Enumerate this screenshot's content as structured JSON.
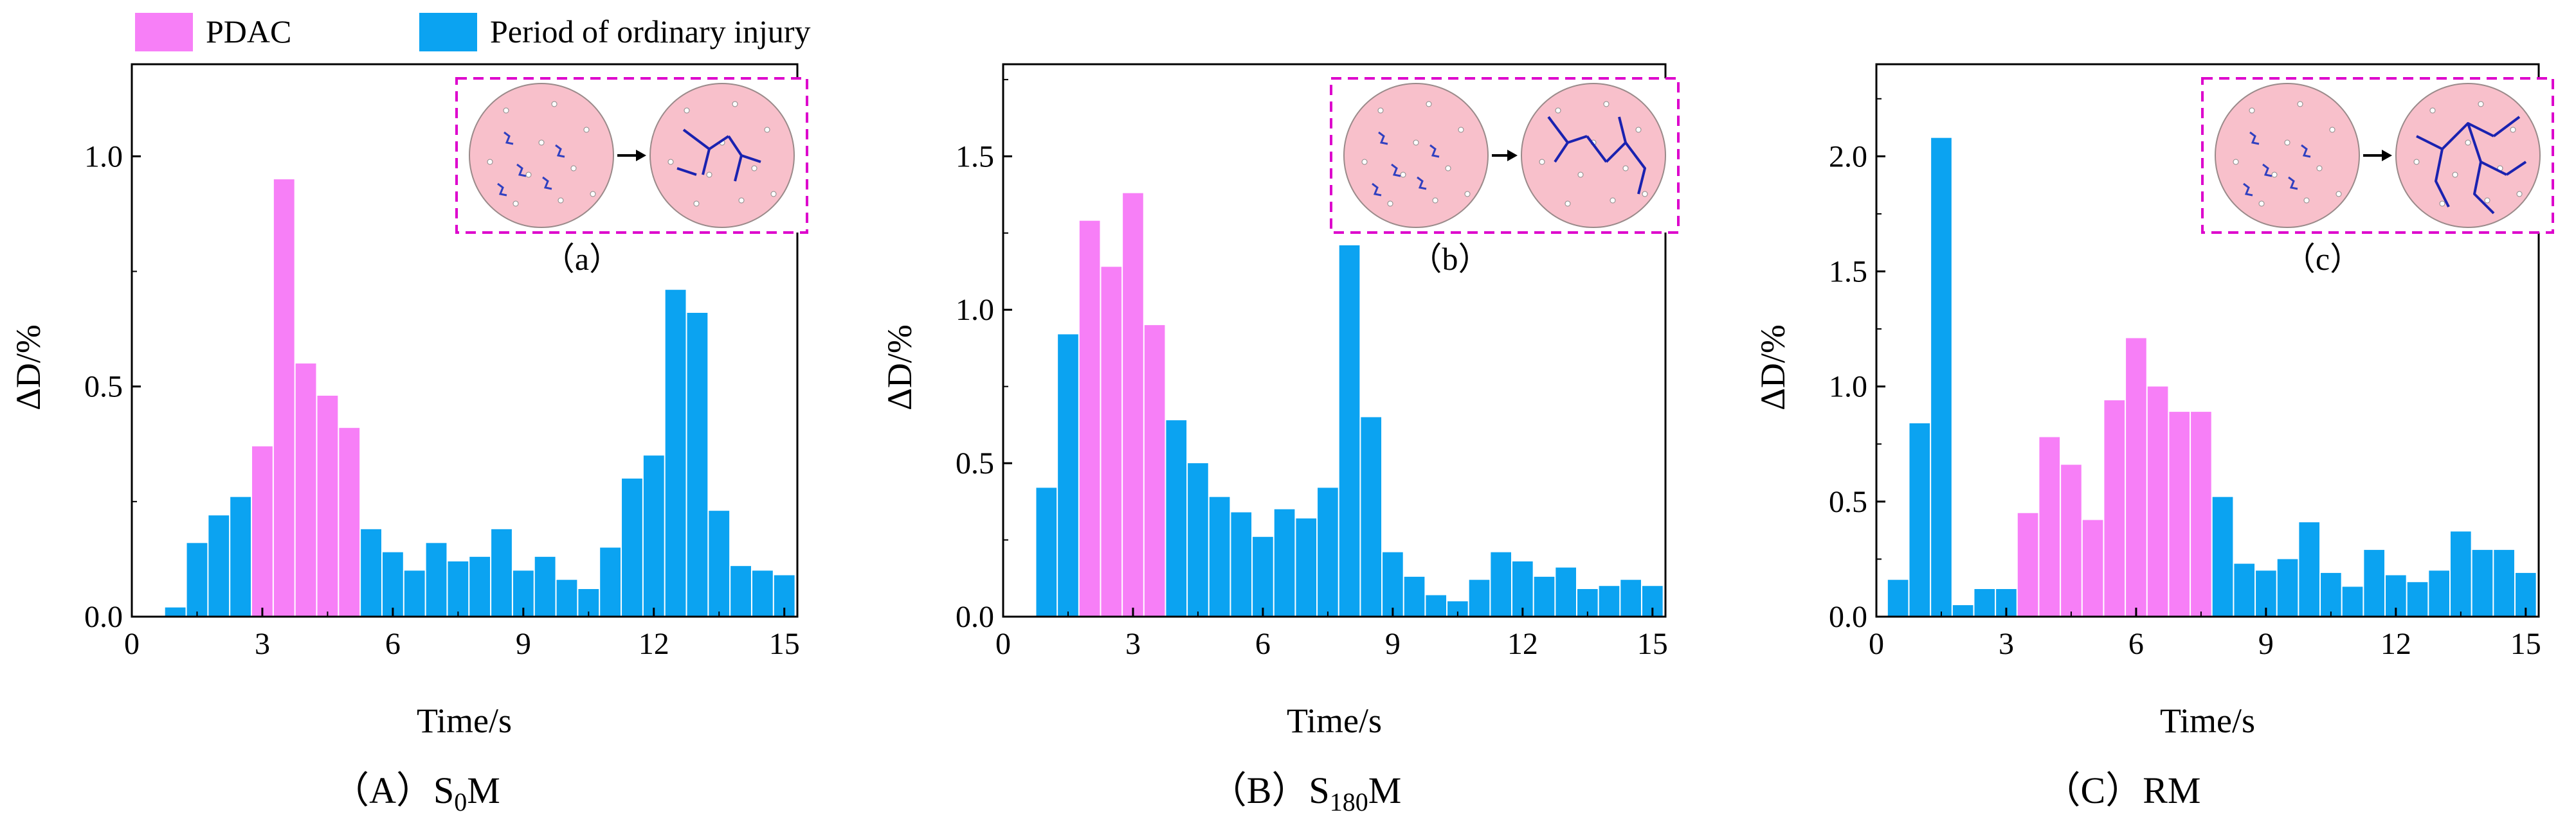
{
  "legend": [
    {
      "label": "PDAC",
      "color": "#f77ff7"
    },
    {
      "label": "Period of ordinary injury",
      "color": "#0ba3f1"
    }
  ],
  "colors": {
    "pdac": "#f77ff7",
    "ordinary": "#0ba3f1",
    "inset_border": "#dd00cc",
    "specimen": "#f8c0cb"
  },
  "chart_data": [
    {
      "type": "bar",
      "caption": {
        "prefix": "（A）S",
        "sub": "0",
        "suffix": "M"
      },
      "inset_caption": "（a）",
      "xlabel": "Time/s",
      "ylabel": "ΔD/%",
      "xlim": [
        0,
        15.3
      ],
      "ylim": [
        0,
        1.2
      ],
      "xticks": [
        "0",
        "3",
        "6",
        "9",
        "12",
        "15"
      ],
      "yticks": [
        "0.0",
        "0.5",
        "1.0"
      ],
      "bar_width": 0.5,
      "x": [
        1.0,
        1.5,
        2.0,
        2.5,
        3.0,
        3.5,
        4.0,
        4.5,
        5.0,
        5.5,
        6.0,
        6.5,
        7.0,
        7.5,
        8.0,
        8.5,
        9.0,
        9.5,
        10.0,
        10.5,
        11.0,
        11.5,
        12.0,
        12.5,
        13.0,
        13.5,
        14.0,
        14.5,
        15.0
      ],
      "values": [
        0.02,
        0.16,
        0.22,
        0.26,
        0.37,
        0.95,
        0.55,
        0.48,
        0.41,
        0.19,
        0.14,
        0.1,
        0.16,
        0.12,
        0.13,
        0.19,
        0.1,
        0.13,
        0.08,
        0.06,
        0.15,
        0.3,
        0.35,
        0.71,
        0.66,
        0.23,
        0.11,
        0.1,
        0.09
      ],
      "phase": [
        "ordinary",
        "ordinary",
        "ordinary",
        "ordinary",
        "pdac",
        "pdac",
        "pdac",
        "pdac",
        "pdac",
        "ordinary",
        "ordinary",
        "ordinary",
        "ordinary",
        "ordinary",
        "ordinary",
        "ordinary",
        "ordinary",
        "ordinary",
        "ordinary",
        "ordinary",
        "ordinary",
        "ordinary",
        "ordinary",
        "ordinary",
        "ordinary",
        "ordinary",
        "ordinary",
        "ordinary",
        "ordinary"
      ]
    },
    {
      "type": "bar",
      "caption": {
        "prefix": "（B）S",
        "sub": "180",
        "suffix": "M"
      },
      "inset_caption": "（b）",
      "xlabel": "Time/s",
      "ylabel": "ΔD/%",
      "xlim": [
        0,
        15.3
      ],
      "ylim": [
        0,
        1.8
      ],
      "xticks": [
        "0",
        "3",
        "6",
        "9",
        "12",
        "15"
      ],
      "yticks": [
        "0.0",
        "0.5",
        "1.0",
        "1.5"
      ],
      "bar_width": 0.5,
      "x": [
        1.0,
        1.5,
        2.0,
        2.5,
        3.0,
        3.5,
        4.0,
        4.5,
        5.0,
        5.5,
        6.0,
        6.5,
        7.0,
        7.5,
        8.0,
        8.5,
        9.0,
        9.5,
        10.0,
        10.5,
        11.0,
        11.5,
        12.0,
        12.5,
        13.0,
        13.5,
        14.0,
        14.5,
        15.0
      ],
      "values": [
        0.42,
        0.92,
        1.29,
        1.14,
        1.38,
        0.95,
        0.64,
        0.5,
        0.39,
        0.34,
        0.26,
        0.35,
        0.32,
        0.42,
        1.21,
        0.65,
        0.21,
        0.13,
        0.07,
        0.05,
        0.12,
        0.21,
        0.18,
        0.13,
        0.16,
        0.09,
        0.1,
        0.12,
        0.1
      ],
      "phase": [
        "ordinary",
        "ordinary",
        "pdac",
        "pdac",
        "pdac",
        "pdac",
        "ordinary",
        "ordinary",
        "ordinary",
        "ordinary",
        "ordinary",
        "ordinary",
        "ordinary",
        "ordinary",
        "ordinary",
        "ordinary",
        "ordinary",
        "ordinary",
        "ordinary",
        "ordinary",
        "ordinary",
        "ordinary",
        "ordinary",
        "ordinary",
        "ordinary",
        "ordinary",
        "ordinary",
        "ordinary",
        "ordinary"
      ]
    },
    {
      "type": "bar",
      "caption": {
        "prefix": "（C）RM",
        "sub": "",
        "suffix": ""
      },
      "inset_caption": "（c）",
      "xlabel": "Time/s",
      "ylabel": "ΔD/%",
      "xlim": [
        0,
        15.3
      ],
      "ylim": [
        0,
        2.4
      ],
      "xticks": [
        "0",
        "3",
        "6",
        "9",
        "12",
        "15"
      ],
      "yticks": [
        "0.0",
        "0.5",
        "1.0",
        "1.5",
        "2.0"
      ],
      "bar_width": 0.5,
      "x": [
        0.5,
        1.0,
        1.5,
        2.0,
        2.5,
        3.0,
        3.5,
        4.0,
        4.5,
        5.0,
        5.5,
        6.0,
        6.5,
        7.0,
        7.5,
        8.0,
        8.5,
        9.0,
        9.5,
        10.0,
        10.5,
        11.0,
        11.5,
        12.0,
        12.5,
        13.0,
        13.5,
        14.0,
        14.5,
        15.0
      ],
      "values": [
        0.16,
        0.84,
        2.08,
        0.05,
        0.12,
        0.12,
        0.45,
        0.78,
        0.66,
        0.42,
        0.94,
        1.21,
        1.0,
        0.89,
        0.89,
        0.52,
        0.23,
        0.2,
        0.25,
        0.41,
        0.19,
        0.13,
        0.29,
        0.18,
        0.15,
        0.2,
        0.37,
        0.29,
        0.29,
        0.19
      ],
      "phase": [
        "ordinary",
        "ordinary",
        "ordinary",
        "ordinary",
        "ordinary",
        "ordinary",
        "pdac",
        "pdac",
        "pdac",
        "pdac",
        "pdac",
        "pdac",
        "pdac",
        "pdac",
        "pdac",
        "ordinary",
        "ordinary",
        "ordinary",
        "ordinary",
        "ordinary",
        "ordinary",
        "ordinary",
        "ordinary",
        "ordinary",
        "ordinary",
        "ordinary",
        "ordinary",
        "ordinary",
        "ordinary",
        "ordinary"
      ]
    }
  ]
}
